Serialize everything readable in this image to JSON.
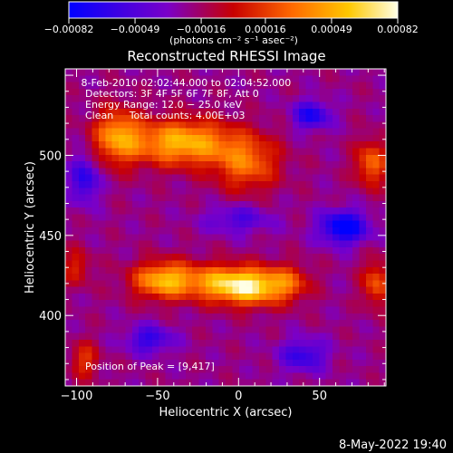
{
  "chart_data": {
    "type": "heatmap",
    "title": "Reconstructed RHESSI Image",
    "xlabel": "Heliocentric X (arcsec)",
    "ylabel": "Heliocentric Y (arcsec)",
    "xlim": [
      -107,
      91
    ],
    "ylim": [
      356,
      554
    ],
    "x_ticks": [
      -100,
      -50,
      0,
      50
    ],
    "x_tick_labels": [
      "−100",
      "−50",
      "0",
      "50"
    ],
    "y_ticks": [
      400,
      450,
      500
    ],
    "y_tick_labels": [
      "400",
      "450",
      "500"
    ],
    "colorbar": {
      "range": [
        -0.00082,
        0.00082
      ],
      "ticks": [
        -0.00082,
        -0.00049,
        -0.00016,
        0.00016,
        0.00049,
        0.00082
      ],
      "tick_labels": [
        "−0.00082",
        "−0.00049",
        "−0.00016",
        "0.00016",
        "0.00049",
        "0.00082"
      ],
      "units": "(photons cm⁻² s⁻¹ asec⁻²)",
      "colors": [
        "#0000ff",
        "#7a00c8",
        "#c80000",
        "#ff6a00",
        "#ffc800",
        "#ffffe6"
      ]
    },
    "annotations": [
      " 8-Feb-2010 02:02:44.000 to 02:04:52.000",
      "Detectors: 3F 4F 5F 6F 7F 8F, Att 0",
      "Energy Range: 12.0 − 25.0 keV",
      "Clean     Total counts: 4.00E+03"
    ],
    "peak_label": "Position of Peak = [9,417]",
    "peak_position": [
      9,
      417
    ],
    "sources": [
      {
        "x": -35,
        "y": 508,
        "sx": 22,
        "sy": 10,
        "amp": 0.00075
      },
      {
        "x": -75,
        "y": 512,
        "sx": 10,
        "sy": 12,
        "amp": 0.0006
      },
      {
        "x": 5,
        "y": 495,
        "sx": 14,
        "sy": 12,
        "amp": 0.0005
      },
      {
        "x": -45,
        "y": 422,
        "sx": 14,
        "sy": 8,
        "amp": 0.00078
      },
      {
        "x": 8,
        "y": 418,
        "sx": 12,
        "sy": 8,
        "amp": 0.00082
      },
      {
        "x": -12,
        "y": 420,
        "sx": 12,
        "sy": 8,
        "amp": 0.0006
      },
      {
        "x": 30,
        "y": 420,
        "sx": 10,
        "sy": 8,
        "amp": 0.00045
      },
      {
        "x": 82,
        "y": 495,
        "sx": 7,
        "sy": 10,
        "amp": 0.0005
      },
      {
        "x": 85,
        "y": 420,
        "sx": 6,
        "sy": 10,
        "amp": 0.00045
      },
      {
        "x": -95,
        "y": 372,
        "sx": 6,
        "sy": 8,
        "amp": 0.00035
      },
      {
        "x": -100,
        "y": 430,
        "sx": 6,
        "sy": 8,
        "amp": 0.0003
      },
      {
        "x": 65,
        "y": 455,
        "sx": 10,
        "sy": 7,
        "amp": -0.0007
      },
      {
        "x": 45,
        "y": 525,
        "sx": 8,
        "sy": 6,
        "amp": -0.0005
      },
      {
        "x": -55,
        "y": 385,
        "sx": 10,
        "sy": 6,
        "amp": -0.0004
      },
      {
        "x": 40,
        "y": 375,
        "sx": 10,
        "sy": 7,
        "amp": -0.0004
      },
      {
        "x": -95,
        "y": 485,
        "sx": 6,
        "sy": 10,
        "amp": -0.00045
      },
      {
        "x": 0,
        "y": 460,
        "sx": 14,
        "sy": 6,
        "amp": -0.0003
      }
    ]
  },
  "timestamp": "8-May-2022 19:40"
}
